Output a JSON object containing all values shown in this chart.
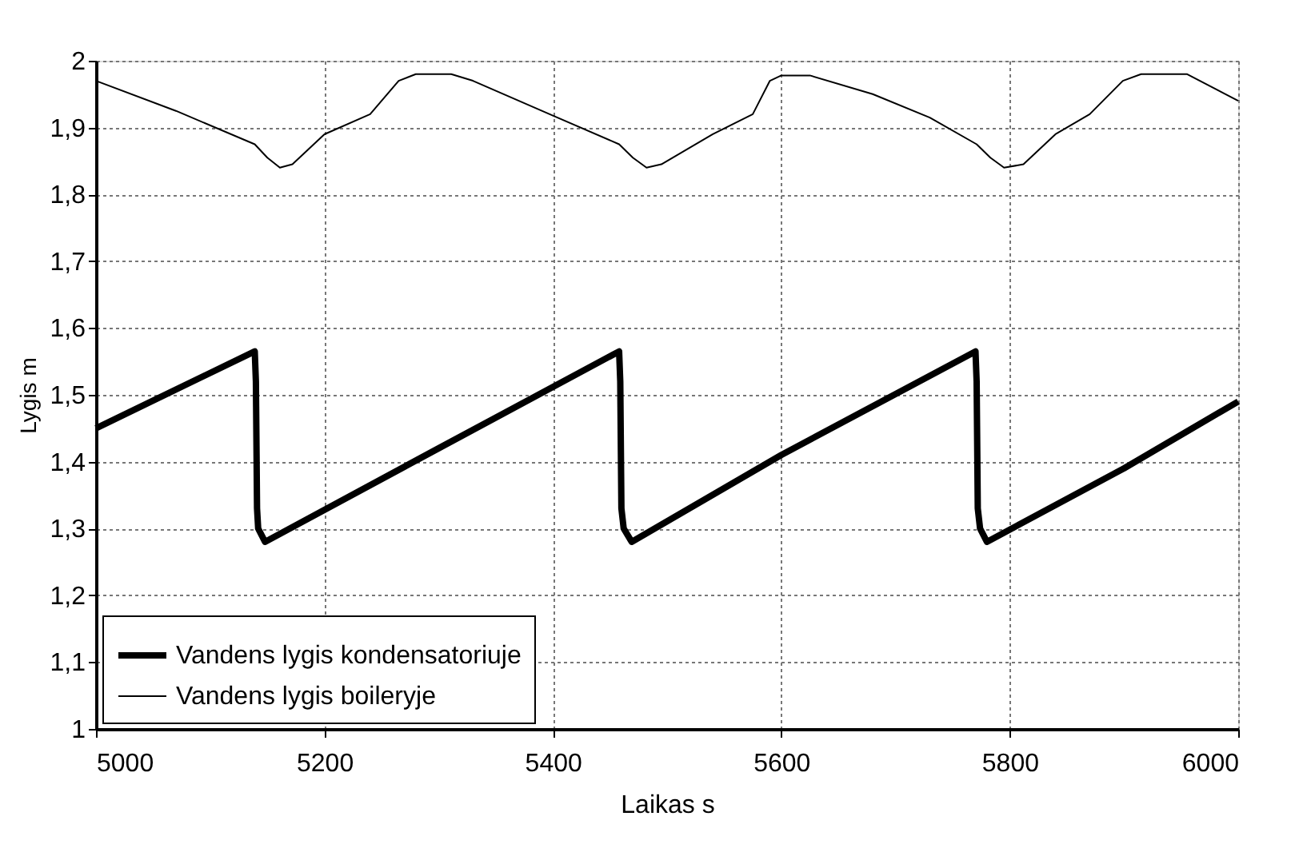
{
  "chart_data": {
    "type": "line",
    "xlabel": "Laikas s",
    "ylabel": "Lygis m",
    "xlim": [
      5000,
      6000
    ],
    "xticks": [
      5000,
      5200,
      5400,
      5600,
      5800,
      6000
    ],
    "ylim": [
      1,
      2
    ],
    "yticks": [
      1,
      {
        "value": 1.1,
        "label": "1,1"
      },
      {
        "value": 1.2,
        "label": "1,2"
      },
      {
        "value": 1.3,
        "label": "1,3"
      },
      {
        "value": 1.4,
        "label": "1,4"
      },
      {
        "value": 1.5,
        "label": "1,5"
      },
      {
        "value": 1.6,
        "label": "1,6"
      },
      {
        "value": 1.7,
        "label": "1,7"
      },
      {
        "value": 1.8,
        "label": "1,8"
      },
      {
        "value": 1.9,
        "label": "1,9"
      },
      2
    ],
    "grid": true,
    "legend": "bottom left",
    "marker": "none",
    "line_style": "solid",
    "series": [
      {
        "name": "Vandens lygis kondensatoriuje",
        "color": "#000000",
        "x": [
          5000,
          5139,
          5140,
          5141,
          5142,
          5148,
          5300,
          5458,
          5459,
          5460,
          5462,
          5469,
          5600,
          5770,
          5771,
          5772,
          5774,
          5780,
          5900,
          6000
        ],
        "values": [
          1.45,
          1.565,
          1.52,
          1.33,
          1.3,
          1.28,
          1.42,
          1.565,
          1.52,
          1.33,
          1.3,
          1.28,
          1.41,
          1.565,
          1.52,
          1.33,
          1.3,
          1.28,
          1.39,
          1.49
        ]
      },
      {
        "name": "Vandens lygis boileryje",
        "color": "#000000",
        "x": [
          5000,
          5070,
          5139,
          5150,
          5161,
          5172,
          5200,
          5240,
          5265,
          5280,
          5311,
          5330,
          5400,
          5458,
          5470,
          5482,
          5495,
          5540,
          5575,
          5590,
          5600,
          5625,
          5680,
          5730,
          5771,
          5783,
          5795,
          5812,
          5840,
          5870,
          5899,
          5915,
          5955,
          6000
        ],
        "values": [
          1.97,
          1.925,
          1.875,
          1.855,
          1.84,
          1.845,
          1.89,
          1.92,
          1.97,
          1.98,
          1.98,
          1.97,
          1.918,
          1.875,
          1.855,
          1.84,
          1.845,
          1.89,
          1.92,
          1.97,
          1.978,
          1.978,
          1.95,
          1.915,
          1.875,
          1.855,
          1.84,
          1.845,
          1.89,
          1.92,
          1.97,
          1.98,
          1.98,
          1.94
        ]
      }
    ]
  }
}
